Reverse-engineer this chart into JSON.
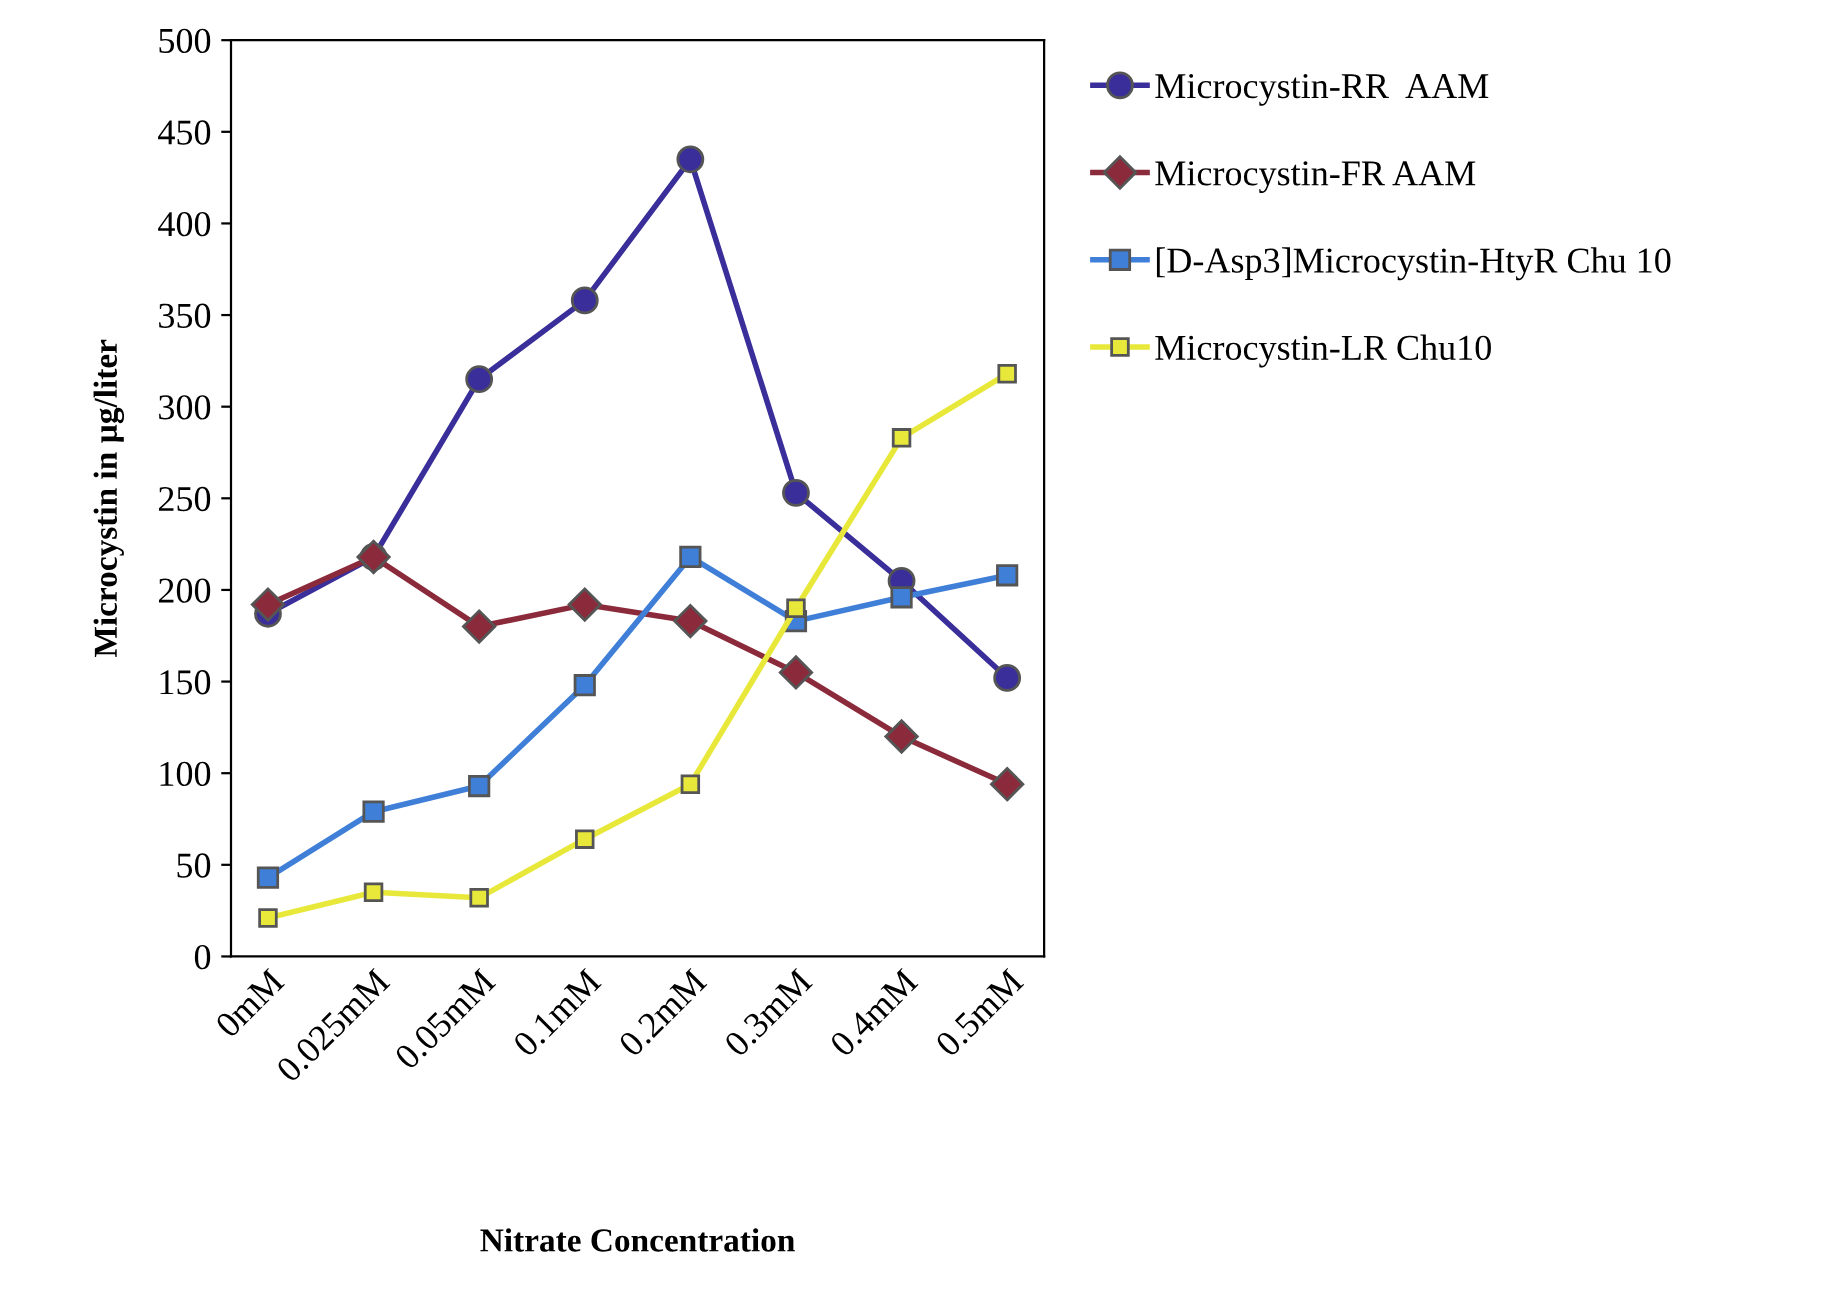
{
  "chart_data": {
    "type": "line",
    "xlabel": "Nitrate Concentration",
    "ylabel": "Microcystin in µg/liter",
    "categories": [
      "0mM",
      "0.025mM",
      "0.05mM",
      "0.1mM",
      "0.2mM",
      "0.3mM",
      "0.4mM",
      "0.5mM"
    ],
    "series": [
      {
        "name": "Microcystin-RR  AAM",
        "color": "#3a2f9a",
        "marker": "circle",
        "values": [
          187,
          218,
          315,
          358,
          435,
          253,
          205,
          152
        ]
      },
      {
        "name": "Microcystin-FR AAM",
        "color": "#8b2a3a",
        "marker": "diamond",
        "values": [
          192,
          218,
          180,
          192,
          183,
          155,
          120,
          94
        ]
      },
      {
        "name": "[D-Asp3]Microcystin-HtyR Chu 10",
        "color": "#3f7fd8",
        "marker": "square",
        "values": [
          43,
          79,
          93,
          148,
          218,
          183,
          196,
          208
        ]
      },
      {
        "name": "Microcystin-LR Chu10",
        "color": "#e8e83a",
        "marker": "square",
        "values": [
          21,
          35,
          32,
          64,
          94,
          190,
          283,
          318
        ]
      }
    ],
    "ylim": [
      0,
      500
    ],
    "yticks": [
      0,
      50,
      100,
      150,
      200,
      250,
      300,
      350,
      400,
      450,
      500
    ],
    "grid": false,
    "legend": "right",
    "line_style": "solid"
  }
}
